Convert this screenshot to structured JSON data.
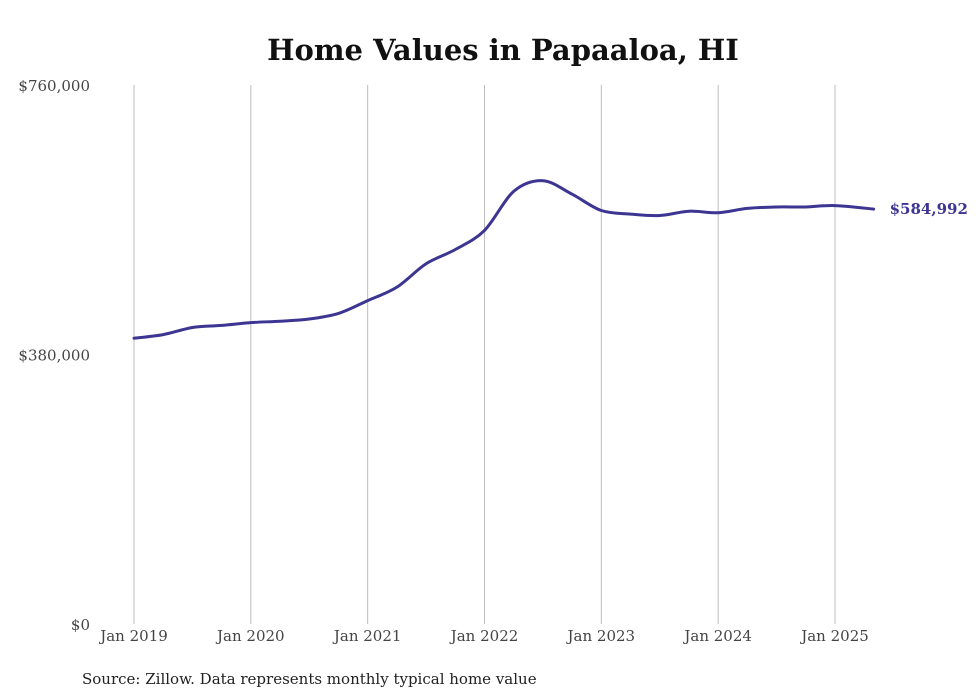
{
  "chart_data": {
    "type": "line",
    "title": "Home Values in Papaaloa, HI",
    "xlabel": "",
    "ylabel": "",
    "ylim": [
      0,
      760000
    ],
    "y_ticks": [
      {
        "value": 0,
        "label": "$0"
      },
      {
        "value": 380000,
        "label": "$380,000"
      },
      {
        "value": 760000,
        "label": "$760,000"
      }
    ],
    "x_ticks": [
      {
        "value": 2019.0,
        "label": "Jan 2019"
      },
      {
        "value": 2020.0,
        "label": "Jan 2020"
      },
      {
        "value": 2021.0,
        "label": "Jan 2021"
      },
      {
        "value": 2022.0,
        "label": "Jan 2022"
      },
      {
        "value": 2023.0,
        "label": "Jan 2023"
      },
      {
        "value": 2024.0,
        "label": "Jan 2024"
      },
      {
        "value": 2025.0,
        "label": "Jan 2025"
      }
    ],
    "xlim": [
      2018.9,
      2025.4
    ],
    "grid": "vertical",
    "line_color": "#3d3592",
    "end_label": "$584,992",
    "source": "Source: Zillow. Data represents monthly typical home value",
    "series": [
      {
        "x": [
          2019.0,
          2019.25,
          2019.5,
          2019.75,
          2020.0,
          2020.25,
          2020.5,
          2020.75,
          2021.0,
          2021.25,
          2021.5,
          2021.75,
          2022.0,
          2022.25,
          2022.5,
          2022.75,
          2023.0,
          2023.25,
          2023.5,
          2023.75,
          2024.0,
          2024.25,
          2024.5,
          2024.75,
          2025.0,
          2025.33
        ],
        "y": [
          403000,
          408000,
          418000,
          421000,
          425000,
          427000,
          430000,
          438000,
          456000,
          475000,
          508000,
          528000,
          555000,
          610000,
          625000,
          606000,
          583000,
          578000,
          576000,
          582000,
          580000,
          586000,
          588000,
          588000,
          590000,
          584992
        ]
      }
    ]
  }
}
